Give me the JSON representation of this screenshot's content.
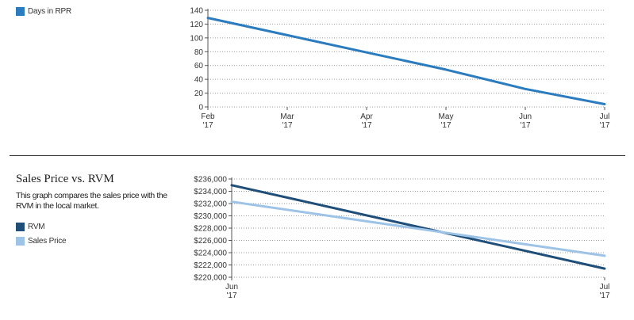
{
  "charts": {
    "top": {
      "legend": [
        {
          "name": "Days in RPR",
          "color": "#2b7bbf"
        }
      ]
    },
    "bottom": {
      "title": "Sales Price vs. RVM",
      "description": "This graph compares the sales price with the RVM in the local market.",
      "legend": [
        {
          "name": "RVM",
          "color": "#1f4e79"
        },
        {
          "name": "Sales Price",
          "color": "#9dc3e6"
        }
      ]
    }
  },
  "chart_data": [
    {
      "type": "line",
      "title": "",
      "xlabel": "",
      "ylabel": "",
      "categories": [
        "Feb '17",
        "Mar '17",
        "Apr '17",
        "May '17",
        "Jun '17",
        "Jul '17"
      ],
      "x_tick_lines": [
        [
          "Feb",
          "'17"
        ],
        [
          "Mar",
          "'17"
        ],
        [
          "Apr",
          "'17"
        ],
        [
          "May",
          "'17"
        ],
        [
          "Jun",
          "'17"
        ],
        [
          "Jul",
          "'17"
        ]
      ],
      "ylim": [
        0,
        140
      ],
      "yticks": [
        0,
        20,
        40,
        60,
        80,
        100,
        120,
        140
      ],
      "ytick_labels": [
        "0",
        "20",
        "40",
        "60",
        "80",
        "100",
        "120",
        "140"
      ],
      "grid": true,
      "legend": "top-left",
      "series": [
        {
          "name": "Days in RPR",
          "color": "#2b7bbf",
          "values": [
            129,
            104,
            79,
            54,
            26,
            4
          ]
        }
      ]
    },
    {
      "type": "line",
      "title": "Sales Price vs. RVM",
      "xlabel": "",
      "ylabel": "",
      "categories": [
        "Jun '17",
        "Jul '17"
      ],
      "x_tick_lines": [
        [
          "Jun",
          "'17"
        ],
        [
          "Jul",
          "'17"
        ]
      ],
      "ylim": [
        220000,
        236000
      ],
      "yticks": [
        220000,
        222000,
        224000,
        226000,
        228000,
        230000,
        232000,
        234000,
        236000
      ],
      "ytick_labels": [
        "$220,000",
        "$222,000",
        "$224,000",
        "$226,000",
        "$228,000",
        "$230,000",
        "$232,000",
        "$234,000",
        "$236,000"
      ],
      "grid": true,
      "legend": "left",
      "series": [
        {
          "name": "RVM",
          "color": "#1f4e79",
          "values": [
            235000,
            221400
          ]
        },
        {
          "name": "Sales Price",
          "color": "#9dc3e6",
          "values": [
            232300,
            223500
          ]
        }
      ]
    }
  ]
}
